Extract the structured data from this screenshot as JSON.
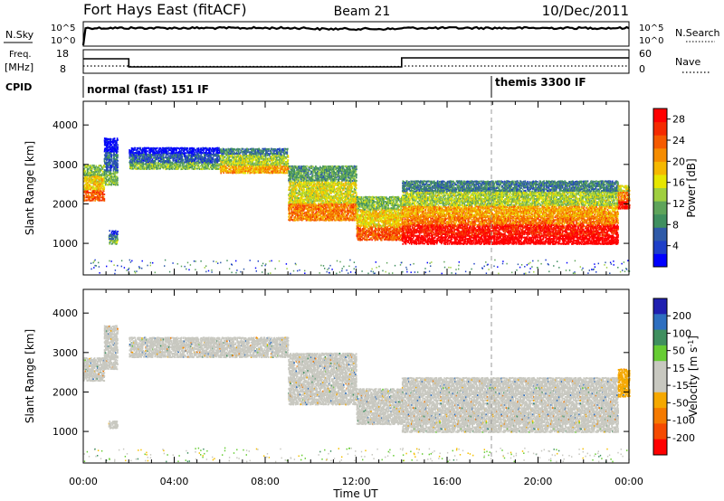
{
  "header": {
    "station": "Fort Hays East (fitACF)",
    "beam": "Beam 21",
    "date": "10/Dec/2011"
  },
  "noise_panel": {
    "left_label": "N.Sky",
    "right_label": "N.Search",
    "left_ticks": [
      "10^5",
      "10^0"
    ],
    "right_ticks": [
      "10^5",
      "10^0"
    ]
  },
  "freq_panel": {
    "left_label_line1": "Freq.",
    "left_label_line2": "[MHz]",
    "right_label": "Nave",
    "left_ticks": [
      "18",
      "8"
    ],
    "right_ticks": [
      "60",
      "0"
    ]
  },
  "cpid_panel": {
    "label": "CPID",
    "modes": [
      {
        "name": "normal (fast) 151 IF",
        "start_hour": 0
      },
      {
        "name": "themis 3300 IF",
        "start_hour": 18
      }
    ]
  },
  "x_axis": {
    "label": "Time UT",
    "ticks": [
      "00:00",
      "04:00",
      "08:00",
      "12:00",
      "16:00",
      "20:00",
      "00:00"
    ],
    "range_hours": [
      0,
      24
    ]
  },
  "chart_data": [
    {
      "type": "heatmap",
      "name": "power",
      "ylabel": "Slant Range [km]",
      "ylim": [
        200,
        4600
      ],
      "yticks": [
        1000,
        2000,
        3000,
        4000
      ],
      "colorbar": {
        "label": "Power [dB]",
        "ticks": [
          4,
          8,
          12,
          16,
          20,
          24,
          28
        ],
        "range": [
          0,
          30
        ],
        "colors": [
          "#0000ff",
          "#1e3fc8",
          "#2f5aa8",
          "#3f8f5f",
          "#5ea45a",
          "#9fcf3f",
          "#e6e600",
          "#f5b800",
          "#f58c00",
          "#f55a00",
          "#f52a00",
          "#ff0000"
        ]
      },
      "scatter_bands": [
        {
          "start_hour": 0.0,
          "end_hour": 0.9,
          "range_low_km": 2100,
          "range_high_km": 3000,
          "power_db": 18
        },
        {
          "start_hour": 0.9,
          "end_hour": 1.5,
          "range_low_km": 2500,
          "range_high_km": 3700,
          "power_db": 6
        },
        {
          "start_hour": 1.1,
          "end_hour": 1.5,
          "range_low_km": 1000,
          "range_high_km": 1350,
          "power_db": 7
        },
        {
          "start_hour": 2.0,
          "end_hour": 6.0,
          "range_low_km": 2900,
          "range_high_km": 3450,
          "power_db": 6
        },
        {
          "start_hour": 6.0,
          "end_hour": 9.0,
          "range_low_km": 2800,
          "range_high_km": 3450,
          "power_db": 14
        },
        {
          "start_hour": 9.0,
          "end_hour": 12.0,
          "range_low_km": 1600,
          "range_high_km": 3000,
          "power_db": 16
        },
        {
          "start_hour": 12.0,
          "end_hour": 14.0,
          "range_low_km": 1100,
          "range_high_km": 2200,
          "power_db": 18
        },
        {
          "start_hour": 14.0,
          "end_hour": 23.5,
          "range_low_km": 1000,
          "range_high_km": 1700,
          "power_db": 28
        },
        {
          "start_hour": 14.0,
          "end_hour": 23.5,
          "range_low_km": 1700,
          "range_high_km": 2600,
          "power_db": 14
        },
        {
          "start_hour": 23.5,
          "end_hour": 24.0,
          "range_low_km": 1900,
          "range_high_km": 2500,
          "power_db": 22
        }
      ]
    },
    {
      "type": "heatmap",
      "name": "velocity",
      "ylabel": "Slant Range [km]",
      "ylim": [
        200,
        4600
      ],
      "yticks": [
        1000,
        2000,
        3000,
        4000
      ],
      "colorbar": {
        "label": "Velocity [m s^-1]",
        "ticks": [
          200,
          100,
          50,
          15,
          -15,
          -50,
          -100,
          -200
        ],
        "colors": [
          "#2020b0",
          "#2e6fc0",
          "#3f8f5f",
          "#66cc33",
          "#c8c8c0",
          "#c8c8c0",
          "#f5a800",
          "#f57a00",
          "#f54a00",
          "#ff0000"
        ]
      },
      "scatter_bands": [
        {
          "start_hour": 0.0,
          "end_hour": 0.9,
          "range_low_km": 2300,
          "range_high_km": 2900,
          "velocity": 0
        },
        {
          "start_hour": 0.9,
          "end_hour": 1.5,
          "range_low_km": 2600,
          "range_high_km": 3700,
          "velocity": 0
        },
        {
          "start_hour": 1.1,
          "end_hour": 1.5,
          "range_low_km": 1100,
          "range_high_km": 1300,
          "velocity": 0
        },
        {
          "start_hour": 2.0,
          "end_hour": 9.0,
          "range_low_km": 2900,
          "range_high_km": 3400,
          "velocity": 0
        },
        {
          "start_hour": 9.0,
          "end_hour": 12.0,
          "range_low_km": 1700,
          "range_high_km": 3000,
          "velocity": 0
        },
        {
          "start_hour": 12.0,
          "end_hour": 14.0,
          "range_low_km": 1200,
          "range_high_km": 2100,
          "velocity": 0
        },
        {
          "start_hour": 14.0,
          "end_hour": 23.5,
          "range_low_km": 1000,
          "range_high_km": 2400,
          "velocity": 0
        },
        {
          "start_hour": 23.5,
          "end_hour": 24.0,
          "range_low_km": 1900,
          "range_high_km": 2600,
          "velocity": -40
        }
      ]
    }
  ]
}
